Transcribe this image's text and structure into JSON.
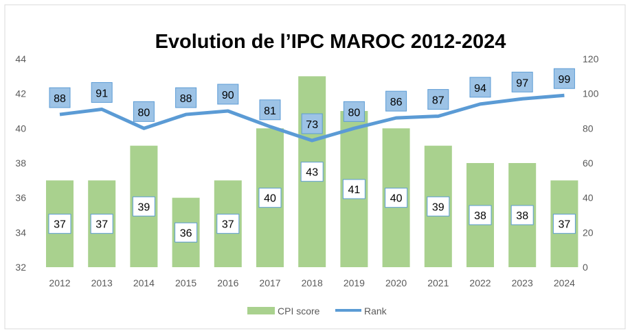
{
  "chart_data": {
    "type": "bar+line",
    "title": "Evolution de l’IPC MAROC 2012-2024",
    "categories": [
      "2012",
      "2013",
      "2014",
      "2015",
      "2016",
      "2017",
      "2018",
      "2019",
      "2020",
      "2021",
      "2022",
      "2023",
      "2024"
    ],
    "series": [
      {
        "name": "CPI score",
        "type": "bar",
        "axis": "left",
        "color": "#a9d18e",
        "values": [
          37,
          37,
          39,
          36,
          37,
          40,
          43,
          41,
          40,
          39,
          38,
          38,
          37
        ]
      },
      {
        "name": "Rank",
        "type": "line",
        "axis": "right",
        "color": "#5b9bd5",
        "values": [
          88,
          91,
          80,
          88,
          90,
          81,
          73,
          80,
          86,
          87,
          94,
          97,
          99
        ]
      }
    ],
    "ylim_left": [
      32,
      44
    ],
    "yticks_left": [
      "32",
      "34",
      "36",
      "38",
      "40",
      "42",
      "44"
    ],
    "ylim_right": [
      0,
      120
    ],
    "yticks_right": [
      "0",
      "20",
      "40",
      "60",
      "80",
      "100",
      "120"
    ],
    "grid": false,
    "legend": "bottom"
  }
}
